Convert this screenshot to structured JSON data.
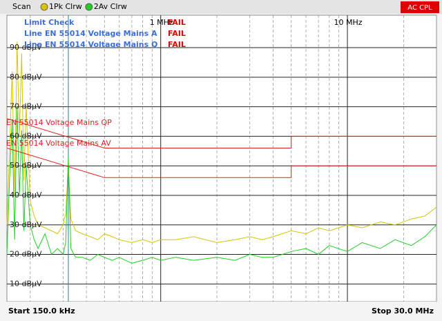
{
  "chart_data": {
    "type": "line",
    "header": {
      "mode": "Scan",
      "coupling": "AC CPL"
    },
    "limit_check": {
      "rows": [
        {
          "label": "Limit Check",
          "result": "FAIL"
        },
        {
          "label": "Line EN 55014 Voltage Mains A",
          "result": "FAIL"
        },
        {
          "label": "Line EN 55014 Voltage Mains Q",
          "result": "FAIL"
        }
      ]
    },
    "start_label": "Start 150.0 kHz",
    "stop_label": "Stop 30.0 MHz",
    "log_x": true,
    "xlim": [
      0.15,
      30
    ],
    "xticks": [
      {
        "value": 1,
        "label": "1 MHz"
      },
      {
        "value": 10,
        "label": "10 MHz"
      }
    ],
    "x_minor_grid": [
      0.2,
      0.3,
      0.4,
      0.5,
      0.6,
      0.7,
      0.8,
      0.9,
      2,
      3,
      4,
      5,
      6,
      7,
      8,
      9,
      20,
      30
    ],
    "ylim": [
      4,
      101
    ],
    "yticks": [
      {
        "value": 10,
        "label": "10 dBµV"
      },
      {
        "value": 20,
        "label": "20 dBµV"
      },
      {
        "value": 30,
        "label": "30 dBµV"
      },
      {
        "value": 40,
        "label": "40 dBµV"
      },
      {
        "value": 50,
        "label": "50 dBµV"
      },
      {
        "value": 60,
        "label": "60 dBµV"
      },
      {
        "value": 70,
        "label": "70 dBµV"
      },
      {
        "value": 80,
        "label": "80 dBµV"
      },
      {
        "value": 90,
        "label": "90 dBµV"
      }
    ],
    "grid": true,
    "marker_x": 0.32,
    "series": [
      {
        "name": "1Pk Clrw",
        "color": "#d8c400",
        "legend": true,
        "x": [
          0.15,
          0.155,
          0.16,
          0.165,
          0.17,
          0.175,
          0.18,
          0.185,
          0.19,
          0.2,
          0.21,
          0.22,
          0.24,
          0.26,
          0.28,
          0.3,
          0.31,
          0.32,
          0.33,
          0.35,
          0.38,
          0.42,
          0.46,
          0.5,
          0.55,
          0.6,
          0.7,
          0.8,
          0.9,
          1,
          1.2,
          1.5,
          2,
          2.5,
          3,
          3.5,
          4,
          5,
          6,
          7,
          8,
          10,
          12,
          15,
          18,
          22,
          26,
          30
        ],
        "values": [
          30,
          55,
          82,
          40,
          92,
          60,
          88,
          45,
          70,
          38,
          33,
          30,
          29,
          28,
          27,
          30,
          34,
          50,
          32,
          28,
          27,
          26,
          25,
          27,
          26,
          25,
          24,
          25,
          24,
          25,
          25,
          26,
          24,
          25,
          26,
          25,
          26,
          28,
          27,
          29,
          28,
          30,
          29,
          31,
          30,
          32,
          33,
          36
        ]
      },
      {
        "name": "2Av Clrw",
        "color": "#22cc22",
        "legend": true,
        "x": [
          0.15,
          0.155,
          0.16,
          0.165,
          0.17,
          0.175,
          0.18,
          0.185,
          0.19,
          0.2,
          0.21,
          0.22,
          0.24,
          0.26,
          0.28,
          0.3,
          0.31,
          0.32,
          0.33,
          0.35,
          0.38,
          0.42,
          0.46,
          0.5,
          0.55,
          0.6,
          0.7,
          0.8,
          0.9,
          1,
          1.2,
          1.5,
          2,
          2.5,
          3,
          3.5,
          4,
          5,
          6,
          7,
          8,
          10,
          12,
          15,
          18,
          22,
          26,
          30
        ],
        "values": [
          20,
          45,
          65,
          25,
          70,
          40,
          62,
          28,
          50,
          30,
          25,
          22,
          27,
          20,
          22,
          20,
          24,
          53,
          22,
          19,
          19,
          18,
          20,
          19,
          18,
          19,
          17,
          18,
          19,
          18,
          19,
          18,
          19,
          18,
          20,
          19,
          19,
          21,
          22,
          20,
          23,
          21,
          24,
          22,
          25,
          23,
          26,
          30
        ]
      },
      {
        "name": "EN 55014 Voltage Mains QP",
        "color": "#e02020",
        "legend": false,
        "x": [
          0.15,
          0.5,
          5,
          5,
          30
        ],
        "values": [
          66,
          56,
          56,
          60,
          60
        ]
      },
      {
        "name": "EN 55014 Voltage Mains AV",
        "color": "#e02020",
        "legend": false,
        "x": [
          0.15,
          0.5,
          5,
          5,
          30
        ],
        "values": [
          56,
          46,
          46,
          50,
          50
        ]
      }
    ]
  }
}
